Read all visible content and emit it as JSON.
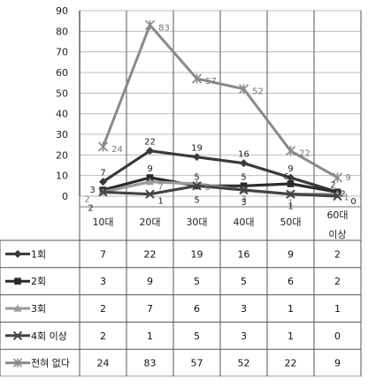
{
  "chart_data": {
    "type": "line",
    "categories": [
      "10대",
      "20대",
      "30대",
      "40대",
      "50대",
      "60대 이상"
    ],
    "ylim": [
      0,
      90
    ],
    "yticks": [
      0,
      10,
      20,
      30,
      40,
      50,
      60,
      70,
      80,
      90
    ],
    "grid": true,
    "legend": "table-below",
    "series": [
      {
        "name": "1회",
        "values": [
          7,
          22,
          19,
          16,
          9,
          2
        ],
        "color": "#3a3a3a",
        "marker": "diamond",
        "icon": "diamond-marker-icon"
      },
      {
        "name": "2회",
        "values": [
          3,
          9,
          5,
          5,
          6,
          2
        ],
        "color": "#2b2b2b",
        "marker": "square",
        "icon": "square-marker-icon"
      },
      {
        "name": "3회",
        "values": [
          2,
          7,
          6,
          3,
          1,
          1
        ],
        "color": "#9a9a9a",
        "marker": "triangle",
        "icon": "triangle-marker-icon"
      },
      {
        "name": "4회 이상",
        "values": [
          2,
          1,
          5,
          3,
          1,
          0
        ],
        "color": "#444444",
        "marker": "x",
        "icon": "x-marker-icon"
      },
      {
        "name": "전혀 없다",
        "values": [
          24,
          83,
          57,
          52,
          22,
          9
        ],
        "color": "#8a8a8a",
        "marker": "star",
        "icon": "star-marker-icon"
      }
    ]
  }
}
